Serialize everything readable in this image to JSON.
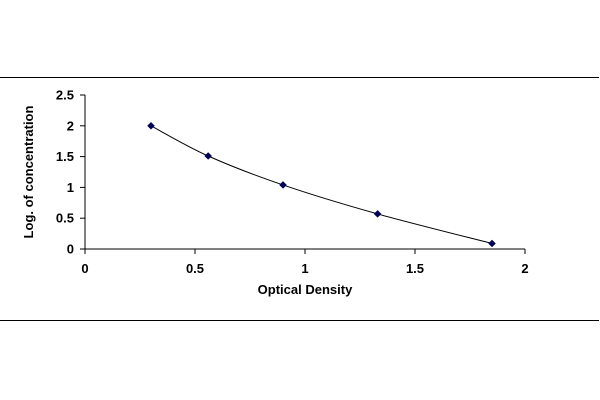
{
  "chart_data": {
    "type": "scatter",
    "title": "",
    "xlabel": "Optical Density",
    "ylabel": "Log. of concentration",
    "xlim": [
      0,
      2
    ],
    "ylim": [
      0,
      2.5
    ],
    "x_ticks": [
      "0",
      "0.5",
      "1",
      "1.5",
      "2"
    ],
    "y_ticks": [
      "0",
      "0.5",
      "1",
      "1.5",
      "2",
      "2.5"
    ],
    "grid": false,
    "legend": "none",
    "points": [
      {
        "x": 0.3,
        "y": 2.0
      },
      {
        "x": 0.56,
        "y": 1.51
      },
      {
        "x": 0.9,
        "y": 1.04
      },
      {
        "x": 1.33,
        "y": 0.57
      },
      {
        "x": 1.85,
        "y": 0.09
      }
    ],
    "series_color": "#00005a",
    "trendline": "smooth curve through points"
  }
}
